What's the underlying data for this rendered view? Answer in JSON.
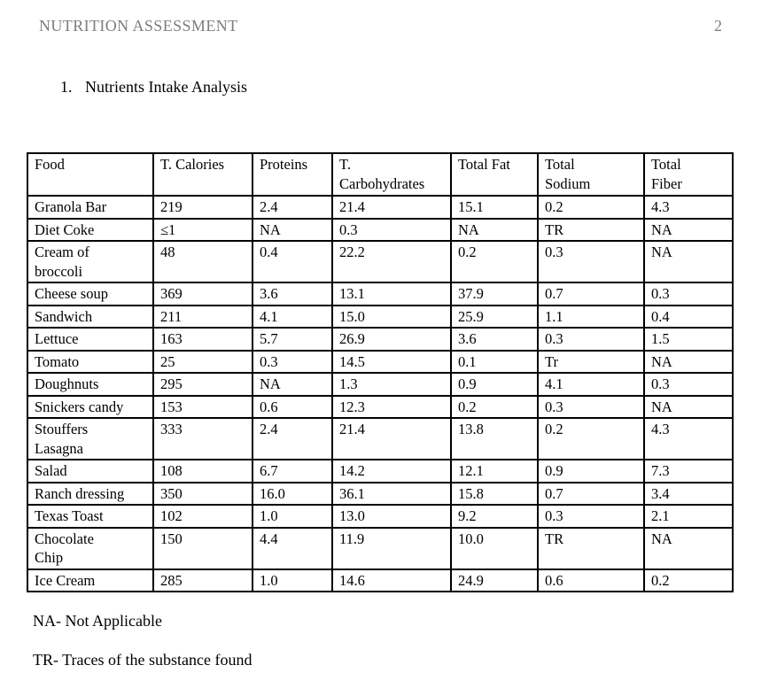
{
  "header": {
    "running_head": "NUTRITION ASSESSMENT",
    "page_number": "2"
  },
  "section": {
    "list_number": "1.",
    "title": "Nutrients Intake Analysis"
  },
  "table": {
    "columns": [
      "Food",
      "T.\nCarbohydrates",
      "Proteins",
      "T. Calories",
      "Total Fat",
      "Total\nSodium",
      "Total\nFiber"
    ],
    "column_order_labels": [
      "Food",
      "T. Calories",
      "Proteins",
      "T.\nCarbohydrates",
      "Total Fat",
      "Total\nSodium",
      "Total\nFiber"
    ],
    "rows": [
      [
        "Granola Bar",
        "219",
        "2.4",
        "21.4",
        "15.1",
        "0.2",
        "4.3"
      ],
      [
        "Diet Coke",
        "≤1",
        "NA",
        "0.3",
        "NA",
        "TR",
        "NA"
      ],
      [
        "Cream of\nbroccoli",
        "48",
        "0.4",
        "22.2",
        "0.2",
        "0.3",
        "NA"
      ],
      [
        "Cheese soup",
        "369",
        "3.6",
        "13.1",
        "37.9",
        "0.7",
        "0.3"
      ],
      [
        "Sandwich",
        "211",
        "4.1",
        "15.0",
        "25.9",
        "1.1",
        "0.4"
      ],
      [
        "Lettuce",
        "163",
        "5.7",
        "26.9",
        "3.6",
        "0.3",
        "1.5"
      ],
      [
        "Tomato",
        "25",
        "0.3",
        "14.5",
        "0.1",
        "Tr",
        "NA"
      ],
      [
        "Doughnuts",
        "295",
        "NA",
        "1.3",
        "0.9",
        "4.1",
        "0.3"
      ],
      [
        "Snickers candy",
        "153",
        "0.6",
        "12.3",
        "0.2",
        "0.3",
        "NA"
      ],
      [
        "Stouffers\nLasagna",
        "333",
        "2.4",
        "21.4",
        "13.8",
        "0.2",
        "4.3"
      ],
      [
        "Salad",
        "108",
        "6.7",
        "14.2",
        "12.1",
        "0.9",
        "7.3"
      ],
      [
        "Ranch dressing",
        "350",
        "16.0",
        "36.1",
        "15.8",
        "0.7",
        "3.4"
      ],
      [
        "Texas Toast",
        "102",
        "1.0",
        "13.0",
        "9.2",
        "0.3",
        "2.1"
      ],
      [
        "Chocolate\nChip",
        "150",
        "4.4",
        "11.9",
        "10.0",
        "TR",
        "NA"
      ],
      [
        "Ice Cream",
        "285",
        "1.0",
        "14.6",
        "24.9",
        "0.6",
        "0.2"
      ]
    ]
  },
  "notes": [
    "NA- Not Applicable",
    "TR- Traces of the substance found"
  ],
  "colors": {
    "running_head": "#7d7d7d",
    "body_text": "#000000",
    "table_border": "#000000",
    "page_background": "#ffffff"
  }
}
